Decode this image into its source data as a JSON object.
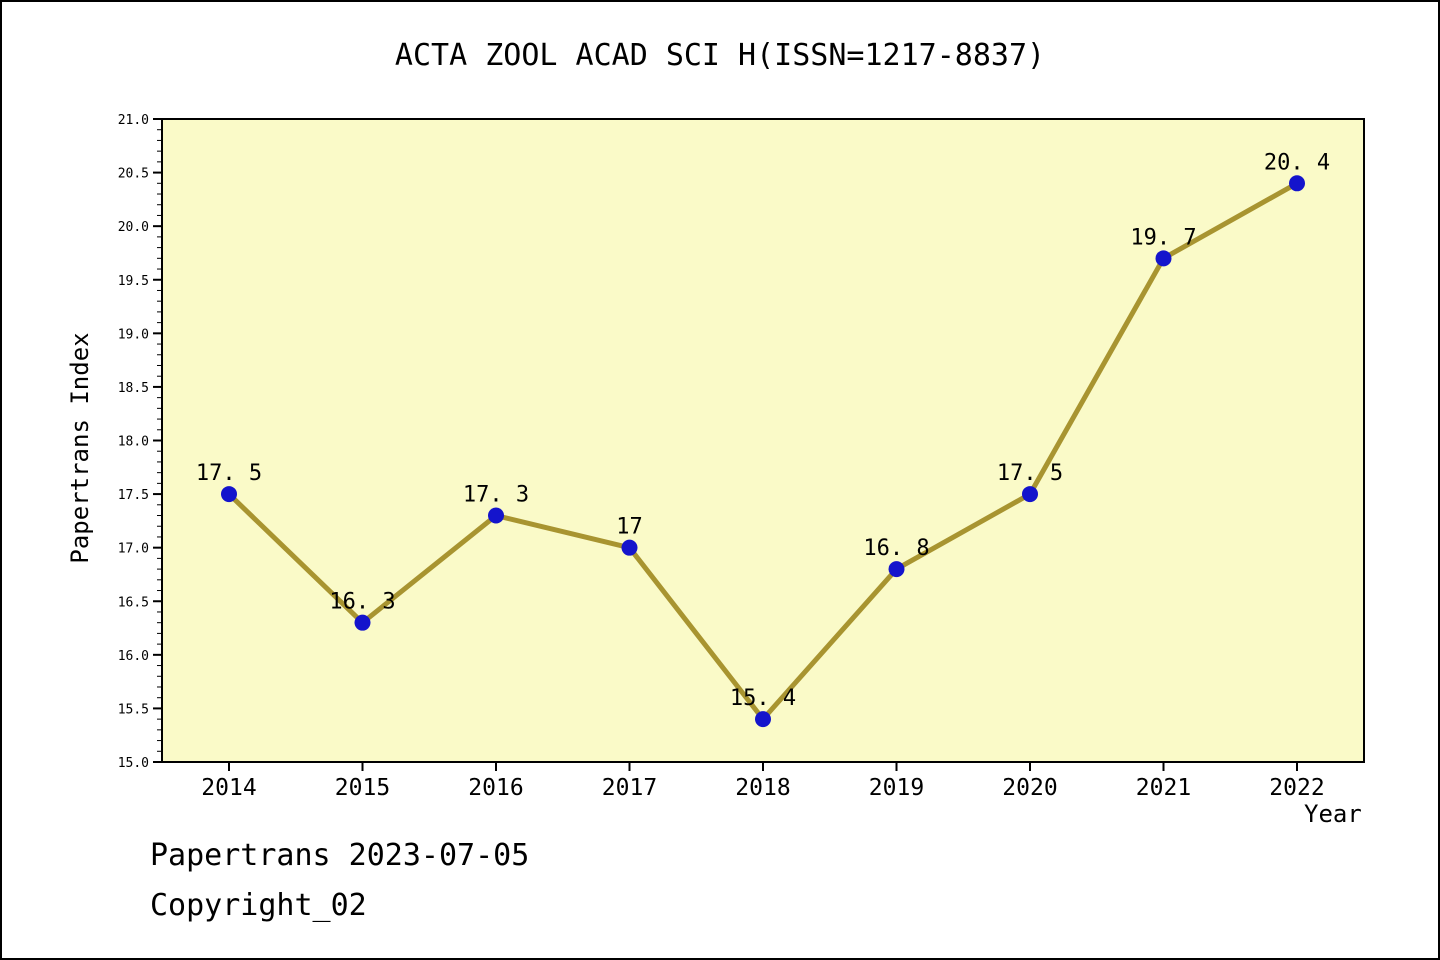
{
  "title": "ACTA ZOOL ACAD SCI H(ISSN=1217-8837)",
  "footer": {
    "line1": "Papertrans 2023-07-05",
    "line2": "Copyright_02"
  },
  "chart_data": {
    "type": "line",
    "title": "ACTA ZOOL ACAD SCI H(ISSN=1217-8837)",
    "xlabel": "Year",
    "ylabel": "Papertrans Index",
    "categories": [
      "2014",
      "2015",
      "2016",
      "2017",
      "2018",
      "2019",
      "2020",
      "2021",
      "2022"
    ],
    "values": [
      17.5,
      16.3,
      17.3,
      17,
      15.4,
      16.8,
      17.5,
      19.7,
      20.4
    ],
    "point_labels": [
      "17. 5",
      "16. 3",
      "17. 3",
      "17",
      "15. 4",
      "16. 8",
      "17. 5",
      "19. 7",
      "20. 4"
    ],
    "ylim": [
      15.0,
      21.0
    ],
    "y_major_step": 0.5,
    "y_minor_step": 0.1,
    "y_tick_labels": [
      "15.0",
      "15.5",
      "16.0",
      "16.5",
      "17.0",
      "17.5",
      "18.0",
      "18.5",
      "19.0",
      "19.5",
      "20.0",
      "20.5",
      "21.0"
    ],
    "grid": false,
    "legend": "none",
    "colors": {
      "plot_background": "#FAFAC8",
      "line": "#A89430",
      "marker": "#1414CC",
      "axis": "#000000",
      "text": "#000000"
    }
  }
}
